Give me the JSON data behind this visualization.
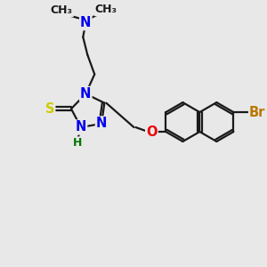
{
  "bg_color": "#e8e8e8",
  "bond_color": "#1a1a1a",
  "bond_width": 1.6,
  "atom_colors": {
    "N": "#0000ee",
    "S": "#cccc00",
    "O": "#ee0000",
    "Br": "#bb7700",
    "H": "#007700",
    "C": "#1a1a1a"
  },
  "font_size_atom": 10.5,
  "font_size_small": 9.0
}
